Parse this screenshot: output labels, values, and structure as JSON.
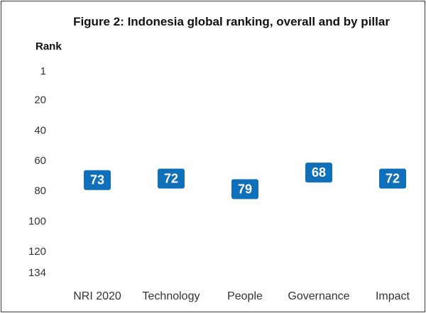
{
  "chart_data": {
    "type": "scatter",
    "title": "Figure 2: Indonesia global ranking, overall and by pillar",
    "ylabel": "Rank",
    "xlabel": "",
    "y_inverted": true,
    "ylim": [
      1,
      134
    ],
    "yticks": [
      "1",
      "20",
      "40",
      "60",
      "80",
      "100",
      "120",
      "134"
    ],
    "ytick_values": [
      1,
      20,
      40,
      60,
      80,
      100,
      120,
      134
    ],
    "categories": [
      "NRI 2020",
      "Technology",
      "People",
      "Governance",
      "Impact"
    ],
    "values": [
      73,
      72,
      79,
      68,
      72
    ],
    "value_labels": [
      "73",
      "72",
      "79",
      "68",
      "72"
    ],
    "grid": false,
    "legend": "none",
    "marker_color": "#0f6fb8",
    "label_color": "#ffffff"
  }
}
